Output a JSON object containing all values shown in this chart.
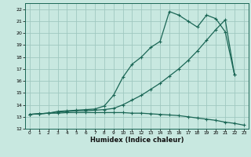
{
  "bg_color": "#c8e8e0",
  "grid_color": "#a0c8c0",
  "line_color": "#1a6655",
  "xlabel": "Humidex (Indice chaleur)",
  "xlim": [
    -0.5,
    23.5
  ],
  "ylim": [
    12,
    22.5
  ],
  "xticks": [
    0,
    1,
    2,
    3,
    4,
    5,
    6,
    7,
    8,
    9,
    10,
    11,
    12,
    13,
    14,
    15,
    16,
    17,
    18,
    19,
    20,
    21,
    22,
    23
  ],
  "yticks": [
    12,
    13,
    14,
    15,
    16,
    17,
    18,
    19,
    20,
    21,
    22
  ],
  "line1_x": [
    0,
    1,
    2,
    3,
    4,
    5,
    6,
    7,
    8,
    9,
    10,
    11,
    12,
    13,
    14,
    15,
    16,
    17,
    18,
    19,
    20,
    21,
    22,
    23
  ],
  "line1_y": [
    13.2,
    13.25,
    13.3,
    13.3,
    13.35,
    13.35,
    13.35,
    13.35,
    13.35,
    13.35,
    13.35,
    13.3,
    13.3,
    13.25,
    13.2,
    13.15,
    13.1,
    13.0,
    12.9,
    12.8,
    12.7,
    12.55,
    12.45,
    12.3
  ],
  "line2_x": [
    0,
    1,
    2,
    3,
    4,
    5,
    6,
    7,
    8,
    9,
    10,
    11,
    12,
    13,
    14,
    15,
    16,
    17,
    18,
    19,
    20,
    21,
    22
  ],
  "line2_y": [
    13.2,
    13.25,
    13.3,
    13.4,
    13.45,
    13.5,
    13.5,
    13.55,
    13.6,
    13.7,
    14.0,
    14.4,
    14.8,
    15.3,
    15.8,
    16.4,
    17.0,
    17.7,
    18.5,
    19.4,
    20.3,
    21.1,
    16.5
  ],
  "line3_x": [
    0,
    1,
    2,
    3,
    4,
    5,
    6,
    7,
    8,
    9,
    10,
    11,
    12,
    13,
    14,
    15,
    16,
    17,
    18,
    19,
    20,
    21,
    22
  ],
  "line3_y": [
    13.2,
    13.25,
    13.3,
    13.45,
    13.5,
    13.55,
    13.6,
    13.65,
    13.9,
    14.8,
    16.3,
    17.4,
    18.0,
    18.8,
    19.3,
    21.8,
    21.5,
    21.0,
    20.5,
    21.5,
    21.2,
    20.1,
    16.5
  ]
}
